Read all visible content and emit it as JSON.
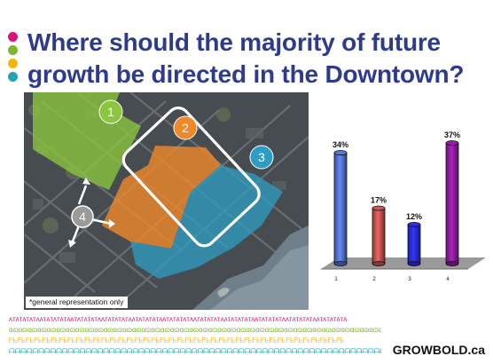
{
  "slide": {
    "title": "Where should the majority of future growth be directed in the Downtown?",
    "brand": "GROWBOLD.ca",
    "bullet_colors": [
      "#d8127a",
      "#7ab829",
      "#f2b60e",
      "#1fa5b1"
    ]
  },
  "map": {
    "note": "*general representation only",
    "zones": [
      {
        "label": "1",
        "color": "#8cc63f"
      },
      {
        "label": "2",
        "color": "#f0882a"
      },
      {
        "label": "3",
        "color": "#2e9dc4"
      },
      {
        "label": "4",
        "color": "#9a9a9a"
      }
    ]
  },
  "chart_data": {
    "type": "bar",
    "categories": [
      "1",
      "2",
      "3",
      "4"
    ],
    "values": [
      34,
      17,
      12,
      37
    ],
    "data_labels": [
      "34%",
      "17%",
      "12%",
      "37%"
    ],
    "colors": [
      "#4f6fc8",
      "#c0504d",
      "#2a2ad6",
      "#8b1a9a"
    ],
    "ylim": [
      0,
      40
    ],
    "grid": false,
    "style": "3d-cylinder"
  },
  "footer": {
    "pattern_rows": [
      {
        "text": "ᴧᴛᴧᴛᴧᴛᴧᴛᴧᴧᴛᴧᴛᴧᴛᴧᴛᴧᴧᴛᴧᴛᴧᴛᴧᴛᴧᴧᴛᴧᴛᴧᴛᴧᴛᴧᴧᴛᴧᴛᴧᴛᴧᴛᴧᴧᴛᴧᴛᴧᴛᴧᴛᴧᴧᴛᴧᴛᴧᴛᴧᴛᴧᴧᴛᴧᴛᴧᴛᴧᴛᴧᴧᴛᴧᴛᴧᴛᴧᴛᴧᴧᴛᴧᴛᴧᴛᴧᴛᴧᴧᴛᴧᴛᴧᴛᴧᴛᴧ",
        "color": "#d8127a"
      },
      {
        "text": "ɑɷɑɷɑɷɑɷɑɷɑɷɑɷɑɷɑɷɑɷɑɷɑɷɑɷɑɷɑɷɑɷɑɷɑɷɑɷɑɷɑɷɑɷɑɷɑɷɑɷɑɷɑɷɑɷɑɷɑɷɑɷɑɷɑɷɑɷɑɷɑɷɑɷɑɷɑɷɑɷɑɷɑɷɑɷɑɷɑɷɑɷɑɷɑɷɑɷɑɷ",
        "color": "#7ab829"
      },
      {
        "text": "ᖴᖶᖴᖶᖴᖶᖴᖶᖴᖶᖴᖶᖴᖶᖴᖶᖴᖶᖴᖶᖴᖶᖴᖶᖴᖶᖴᖶᖴᖶᖴᖶᖴᖶᖴᖶᖴᖶᖴᖶᖴᖶᖴᖶᖴᖶᖴᖶᖴᖶᖴᖶᖴᖶᖴᖶᖴᖶᖴᖶᖴᖶᖴᖶᖴᖶᖴᖶᖴᖶᖴᖶᖴᖶᖴᖶᖴᖶᖴᖶ",
        "color": "#f2b60e"
      },
      {
        "text": "ᗩᗩᗩᗩᗩᗩᗩᗩᗩᗩᗩᗩᗩᗩᗩᗩᗩᗩᗩᗩᗩᗩᗩᗩᗩᗩᗩᗩᗩᗩᗩᗩᗩᗩᗩᗩᗩᗩᗩᗩᗩᗩᗩᗩᗩᗩᗩᗩᗩᗩᗩᗩᗩᗩᗩᗩᗩᗩᗩᗩᗩᗩᗩᗩᗩᗩᗩᗩᗩᗩᗩᗩᗩᗩ",
        "color": "#1fa5b1"
      }
    ]
  }
}
